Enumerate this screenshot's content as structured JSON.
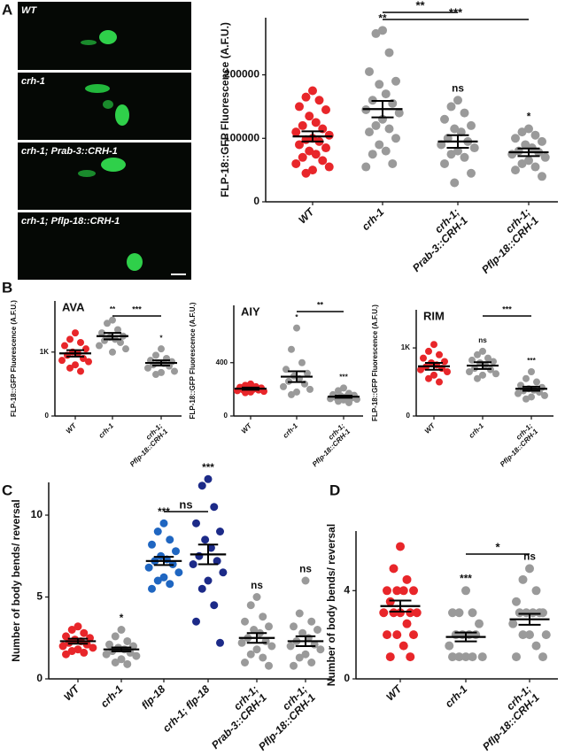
{
  "images": [
    "WT",
    "crh-1",
    "crh-1; Prab-3::CRH-1",
    "crh-1; Pflp-18::CRH-1"
  ],
  "chart_data": [
    {
      "type": "dot",
      "panel": "A",
      "y_label": "FLP-18::GFP Fluorescence (A.F.U.)",
      "categories": [
        [
          "WT"
        ],
        [
          "crh-1"
        ],
        [
          "crh-1;",
          "Prab-3::CRH-1"
        ],
        [
          "crh-1;",
          "Pflp-18::CRH-1"
        ]
      ],
      "groups": [
        {
          "color": "#e8262a",
          "values": [
            175000,
            165000,
            160000,
            150000,
            145000,
            135000,
            125000,
            120000,
            115000,
            110000,
            105000,
            100000,
            98000,
            95000,
            90000,
            85000,
            80000,
            75000,
            70000,
            65000,
            60000,
            55000,
            50000,
            45000
          ],
          "mean": 103000,
          "sem": 8000
        },
        {
          "color": "#9a9a9a",
          "values": [
            270000,
            265000,
            235000,
            205000,
            190000,
            185000,
            170000,
            160000,
            155000,
            145000,
            140000,
            130000,
            120000,
            115000,
            110000,
            100000,
            90000,
            80000,
            75000,
            60000,
            55000
          ],
          "mean": 146000,
          "sem": 13000,
          "annotation": "**"
        },
        {
          "color": "#9a9a9a",
          "values": [
            160000,
            150000,
            140000,
            130000,
            120000,
            115000,
            110000,
            100000,
            95000,
            90000,
            85000,
            80000,
            75000,
            70000,
            60000,
            45000,
            30000
          ],
          "mean": 95000,
          "sem": 10000,
          "annotation": "ns"
        },
        {
          "color": "#9a9a9a",
          "values": [
            115000,
            110000,
            105000,
            100000,
            95000,
            90000,
            85000,
            80000,
            78000,
            75000,
            70000,
            65000,
            60000,
            55000,
            50000,
            40000
          ],
          "mean": 78000,
          "sem": 6000,
          "annotation": "*"
        }
      ],
      "brackets": [
        {
          "from": 1,
          "to": 2,
          "label": "**"
        },
        {
          "from": 1,
          "to": 3,
          "label": "***"
        }
      ],
      "ylim": [
        0,
        290000
      ],
      "yticks": [
        0,
        100000,
        200000
      ]
    },
    {
      "type": "dot",
      "panel": "B",
      "title": "AVA",
      "y_label": "FLP-18::GFP Fluorescence (A.F.U.)",
      "categories": [
        [
          "WT"
        ],
        [
          "crh-1"
        ],
        [
          "crh-1;",
          "Pflp-18::CRH-1"
        ]
      ],
      "groups": [
        {
          "color": "#e8262a",
          "values": [
            1300,
            1200,
            1150,
            1100,
            1050,
            1000,
            980,
            950,
            900,
            870,
            850,
            800,
            750,
            700
          ],
          "mean": 980,
          "sem": 50
        },
        {
          "color": "#9a9a9a",
          "values": [
            1500,
            1450,
            1350,
            1300,
            1250,
            1230,
            1200,
            1180,
            1150,
            1100,
            1050,
            1000
          ],
          "mean": 1250,
          "sem": 50,
          "annotation": "**"
        },
        {
          "color": "#9a9a9a",
          "values": [
            1050,
            950,
            900,
            870,
            850,
            830,
            820,
            800,
            780,
            750,
            700,
            680,
            650
          ],
          "mean": 830,
          "sem": 40,
          "annotation": "*"
        }
      ],
      "brackets": [
        {
          "from": 1,
          "to": 2,
          "label": "***"
        }
      ],
      "ylim": [
        0,
        1800
      ],
      "yticks": [
        0,
        {
          "value": 1000,
          "label": "1K"
        }
      ]
    },
    {
      "type": "dot",
      "title": "AIY",
      "y_label": "FLP-18::GFP Fluorescence (A.F.U.)",
      "categories": [
        [
          "WT"
        ],
        [
          "crh-1"
        ],
        [
          "crh-1;",
          "Pflp-18::CRH-1"
        ]
      ],
      "groups": [
        {
          "color": "#e8262a",
          "values": [
            240,
            230,
            220,
            215,
            210,
            205,
            200,
            198,
            195,
            190,
            185,
            180,
            175
          ],
          "mean": 205,
          "sem": 8
        },
        {
          "color": "#9a9a9a",
          "values": [
            660,
            500,
            400,
            350,
            320,
            300,
            280,
            260,
            240,
            220,
            200,
            180,
            160
          ],
          "mean": 295,
          "sem": 40,
          "annotation": "*"
        },
        {
          "color": "#9a9a9a",
          "values": [
            210,
            190,
            170,
            160,
            155,
            150,
            145,
            140,
            135,
            130,
            125,
            120,
            110,
            100
          ],
          "mean": 145,
          "sem": 8,
          "annotation": "***"
        }
      ],
      "brackets": [
        {
          "from": 1,
          "to": 2,
          "label": "**"
        }
      ],
      "ylim": [
        0,
        830
      ],
      "yticks": [
        0,
        400
      ]
    },
    {
      "type": "dot",
      "title": "RIM",
      "y_label": "FLP-18::GFP Fluorescence (A.F.U.)",
      "categories": [
        [
          "WT"
        ],
        [
          "crh-1"
        ],
        [
          "crh-1;",
          "Pflp-18::CRH-1"
        ]
      ],
      "groups": [
        {
          "color": "#e8262a",
          "values": [
            1050,
            950,
            900,
            850,
            800,
            780,
            750,
            720,
            700,
            680,
            650,
            600,
            550,
            500
          ],
          "mean": 730,
          "sem": 50
        },
        {
          "color": "#9a9a9a",
          "values": [
            950,
            900,
            850,
            820,
            800,
            780,
            750,
            700,
            680,
            650,
            620,
            600,
            550
          ],
          "mean": 740,
          "sem": 50,
          "annotation": "ns"
        },
        {
          "color": "#9a9a9a",
          "values": [
            650,
            550,
            500,
            450,
            420,
            400,
            380,
            370,
            350,
            330,
            300,
            280,
            250
          ],
          "mean": 400,
          "sem": 30,
          "annotation": "***"
        }
      ],
      "brackets": [
        {
          "from": 1,
          "to": 2,
          "label": "***"
        }
      ],
      "ylim": [
        0,
        1560
      ],
      "yticks": [
        0,
        {
          "value": 1000,
          "label": "1K"
        }
      ]
    },
    {
      "type": "dot",
      "panel": "C",
      "y_label": "Number of body bends/ reversal",
      "categories": [
        [
          "WT"
        ],
        [
          "crh-1"
        ],
        [
          "flp-18"
        ],
        [
          "crh-1; flp-18"
        ],
        [
          "crh-1;",
          "Prab-3::CRH-1"
        ],
        [
          "crh-1;",
          "Pflp-18::CRH-1"
        ]
      ],
      "groups": [
        {
          "color": "#e8262a",
          "values": [
            3.2,
            3.0,
            2.8,
            2.6,
            2.5,
            2.4,
            2.3,
            2.2,
            2.1,
            2.0,
            1.9,
            1.8,
            1.7,
            1.6,
            1.5
          ],
          "mean": 2.3,
          "sem": 0.15
        },
        {
          "color": "#9a9a9a",
          "values": [
            3,
            2.6,
            2.3,
            2.1,
            2.0,
            1.9,
            1.8,
            1.7,
            1.6,
            1.5,
            1.4,
            1.2,
            1.0,
            0.9
          ],
          "mean": 1.8,
          "sem": 0.12,
          "annotation": "*"
        },
        {
          "color": "#1f66c1",
          "values": [
            9.5,
            9,
            8.5,
            8.2,
            7.8,
            7.5,
            7.3,
            7.2,
            7.0,
            6.8,
            6.5,
            6.2,
            6.0,
            5.8,
            5.5
          ],
          "mean": 7.2,
          "sem": 0.25,
          "annotation": "***"
        },
        {
          "color": "#1c2a88",
          "values": [
            12.2,
            11.8,
            10.5,
            9.5,
            9,
            8.5,
            8,
            7.5,
            7.2,
            7,
            6.5,
            6,
            5.5,
            4.5,
            3.5,
            2.2
          ],
          "mean": 7.6,
          "sem": 0.6,
          "annotation": "***"
        },
        {
          "color": "#9a9a9a",
          "values": [
            5,
            4.5,
            3.8,
            3.5,
            3.2,
            3,
            2.8,
            2.5,
            2.3,
            2.2,
            2,
            1.8,
            1.5,
            1.3,
            1.0,
            0.8
          ],
          "mean": 2.5,
          "sem": 0.3,
          "annotation": "ns"
        },
        {
          "color": "#9a9a9a",
          "values": [
            6,
            4,
            3.5,
            3.2,
            3,
            2.8,
            2.5,
            2.3,
            2.1,
            2,
            1.8,
            1.5,
            1.3,
            1,
            0.8
          ],
          "mean": 2.3,
          "sem": 0.3,
          "annotation": "ns"
        }
      ],
      "brackets": [
        {
          "from": 2,
          "to": 3,
          "label": "ns"
        }
      ],
      "ylim": [
        0,
        12
      ],
      "yticks": [
        0,
        5,
        10
      ]
    },
    {
      "type": "dot",
      "panel": "D",
      "y_label": "Number of body bends/ reversal",
      "categories": [
        [
          "WT"
        ],
        [
          "crh-1"
        ],
        [
          "crh-1;",
          "Pflp-18::CRH-1"
        ]
      ],
      "groups": [
        {
          "color": "#e8262a",
          "values": [
            6,
            5,
            4.5,
            4,
            4,
            4,
            4,
            3.5,
            3,
            3,
            3,
            3,
            3,
            2.5,
            2,
            2,
            2,
            1.5,
            1,
            1
          ],
          "mean": 3.3,
          "sem": 0.25
        },
        {
          "color": "#9a9a9a",
          "values": [
            4,
            3,
            3,
            3,
            2.5,
            2,
            2,
            2,
            2,
            1.5,
            1,
            1,
            1,
            1,
            1
          ],
          "mean": 1.9,
          "sem": 0.2,
          "annotation": "***"
        },
        {
          "color": "#9a9a9a",
          "values": [
            5,
            4.5,
            4,
            3.5,
            3,
            3,
            3,
            3,
            3,
            2.5,
            2,
            2,
            2,
            1.5,
            1,
            1
          ],
          "mean": 2.7,
          "sem": 0.25,
          "annotation": "ns"
        }
      ],
      "brackets": [
        {
          "from": 1,
          "to": 2,
          "label": "*"
        }
      ],
      "ylim": [
        0,
        6.7
      ],
      "yticks": [
        0,
        4
      ]
    }
  ]
}
